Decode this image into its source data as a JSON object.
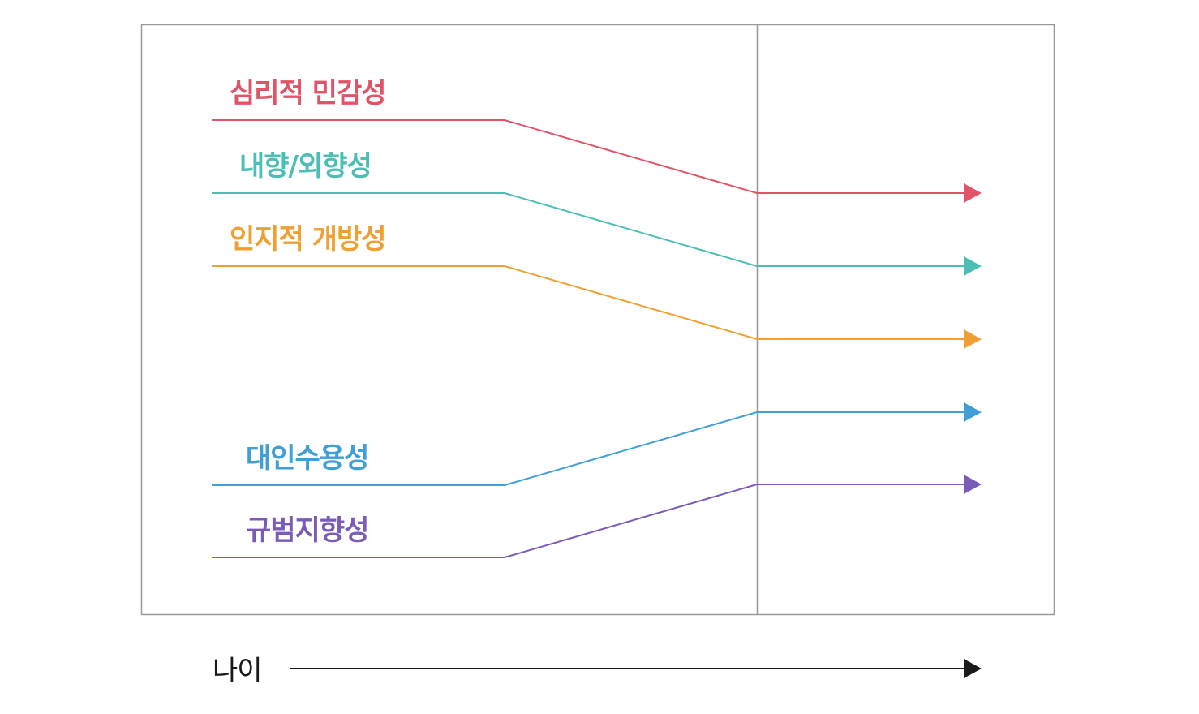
{
  "traits": [
    {
      "label": "심리적 민감성",
      "color": "#e05468",
      "direction": "decrease"
    },
    {
      "label": "내향/외향성",
      "color": "#4bbfb4",
      "direction": "decrease"
    },
    {
      "label": "인지적 개방성",
      "color": "#f0a033",
      "direction": "decrease"
    },
    {
      "label": "대인수용성",
      "color": "#3f9fd6",
      "direction": "increase"
    },
    {
      "label": "규범지향성",
      "color": "#7a5cb8",
      "direction": "increase"
    }
  ],
  "axis": {
    "label": "나이",
    "color": "#1a1a1a"
  },
  "frame_color": "#999999",
  "divider_color": "#999999"
}
